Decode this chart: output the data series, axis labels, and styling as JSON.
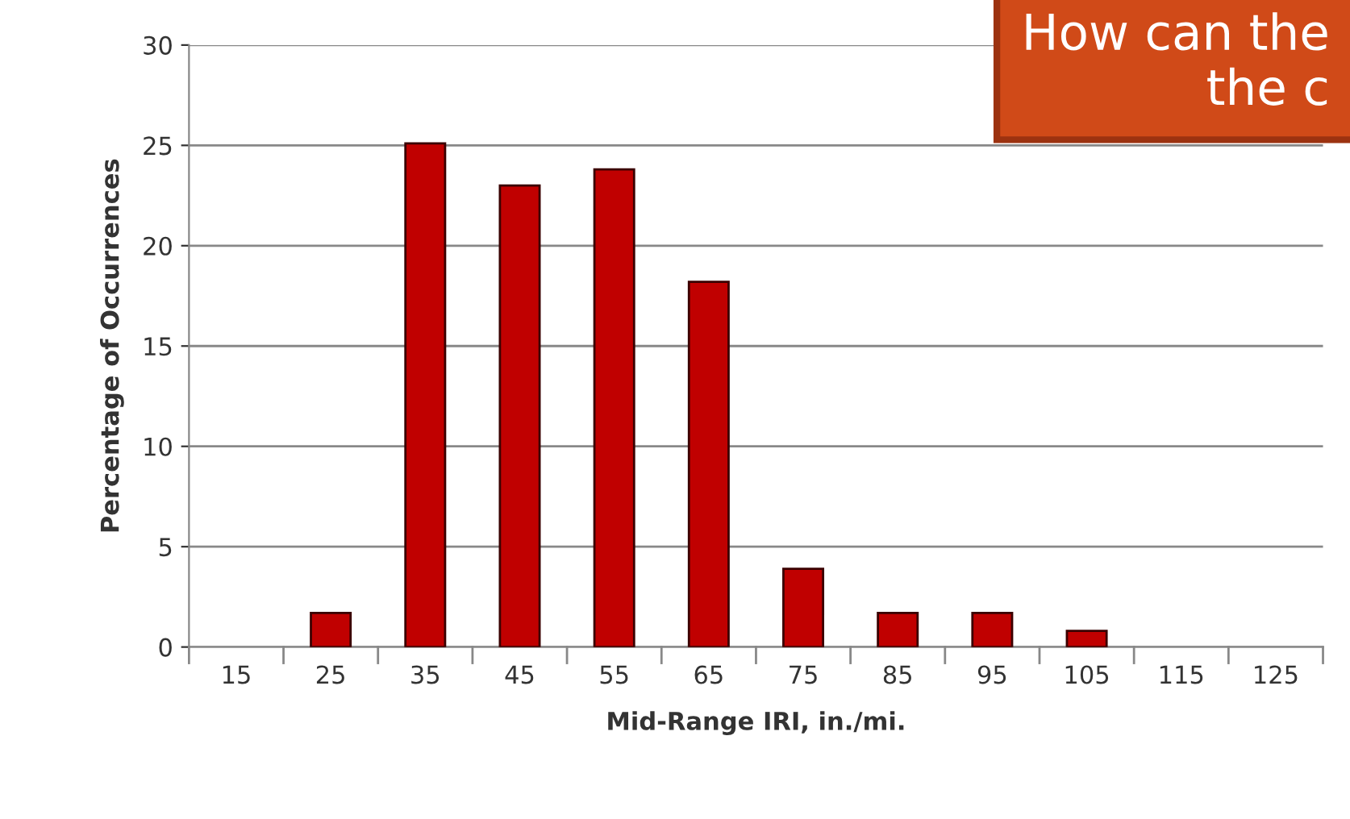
{
  "chart_data": {
    "type": "bar",
    "xlabel": "Mid-Range IRI, in./mi.",
    "ylabel": "Percentage of Occurrences",
    "categories": [
      "15",
      "25",
      "35",
      "45",
      "55",
      "65",
      "75",
      "85",
      "95",
      "105",
      "115",
      "125"
    ],
    "values": [
      0,
      1.7,
      25.1,
      23.0,
      23.8,
      18.2,
      3.9,
      1.7,
      1.7,
      0.8,
      0,
      0
    ],
    "color": "#c00000",
    "ylim": [
      0,
      30
    ],
    "yticks": [
      0,
      5,
      10,
      15,
      20,
      25,
      30
    ],
    "grid": "y",
    "annotations": [
      "How can the\nthe c"
    ]
  }
}
